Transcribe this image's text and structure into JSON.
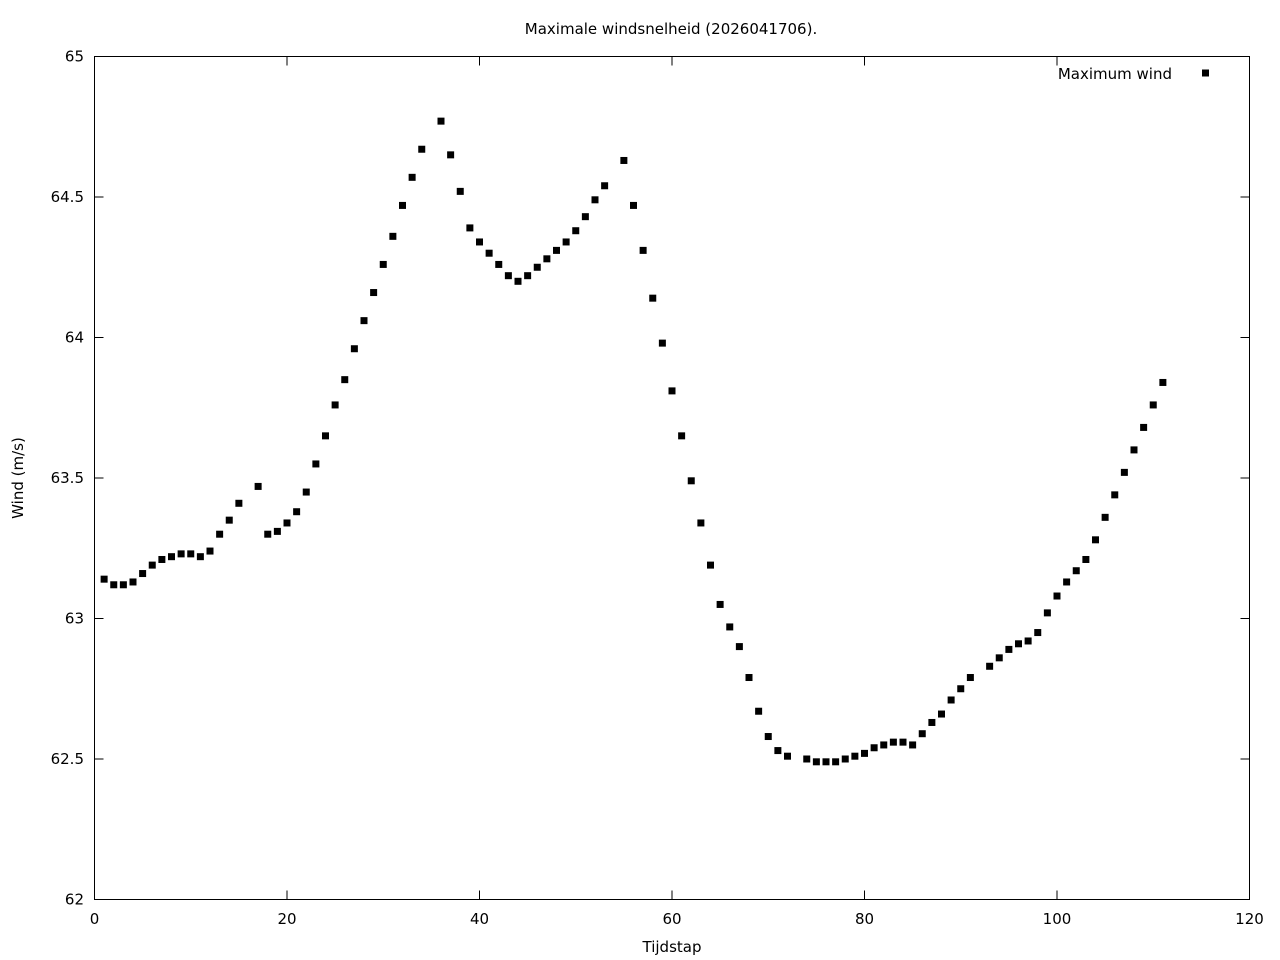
{
  "chart_data": {
    "type": "scatter",
    "title": "Maximale windsnelheid (2026041706).",
    "xlabel": "Tijdstap",
    "ylabel": "Wind (m/s)",
    "xlim": [
      0,
      120
    ],
    "ylim": [
      62,
      65
    ],
    "xticks": [
      "0",
      "20",
      "40",
      "60",
      "80",
      "100",
      "120"
    ],
    "yticks": [
      "62",
      "62.5",
      "63",
      "63.5",
      "64",
      "64.5",
      "65"
    ],
    "grid": false,
    "legend_position": "top-right",
    "marker_color": "#000000",
    "series": [
      {
        "name": "Maximum wind",
        "x": [
          1,
          2,
          3,
          4,
          5,
          6,
          7,
          8,
          9,
          10,
          11,
          12,
          13,
          14,
          15,
          17,
          18,
          19,
          20,
          21,
          22,
          23,
          24,
          25,
          26,
          27,
          28,
          29,
          30,
          31,
          32,
          33,
          34,
          36,
          37,
          38,
          39,
          40,
          41,
          42,
          43,
          44,
          45,
          46,
          47,
          48,
          49,
          50,
          51,
          52,
          53,
          55,
          56,
          57,
          58,
          59,
          60,
          61,
          62,
          63,
          64,
          65,
          66,
          67,
          68,
          69,
          70,
          71,
          72,
          74,
          75,
          76,
          77,
          78,
          79,
          80,
          81,
          82,
          83,
          84,
          85,
          86,
          87,
          88,
          89,
          90,
          91,
          93,
          94,
          95,
          96,
          97,
          98,
          99,
          100,
          101,
          102,
          103,
          104,
          105,
          106,
          107,
          108,
          109,
          110,
          111
        ],
        "y": [
          63.14,
          63.12,
          63.12,
          63.13,
          63.16,
          63.19,
          63.21,
          63.22,
          63.23,
          63.23,
          63.22,
          63.24,
          63.3,
          63.35,
          63.41,
          63.47,
          63.3,
          63.31,
          63.34,
          63.38,
          63.45,
          63.55,
          63.65,
          63.76,
          63.85,
          63.96,
          64.06,
          64.16,
          64.26,
          64.36,
          64.47,
          64.57,
          64.67,
          64.77,
          64.65,
          64.52,
          64.39,
          64.34,
          64.3,
          64.26,
          64.22,
          64.2,
          64.22,
          64.25,
          64.28,
          64.31,
          64.34,
          64.38,
          64.43,
          64.49,
          64.54,
          64.63,
          64.47,
          64.31,
          64.14,
          63.98,
          63.81,
          63.65,
          63.49,
          63.34,
          63.19,
          63.05,
          62.97,
          62.9,
          62.79,
          62.67,
          62.58,
          62.53,
          62.51,
          62.5,
          62.49,
          62.49,
          62.49,
          62.5,
          62.51,
          62.52,
          62.54,
          62.55,
          62.56,
          62.56,
          62.55,
          62.59,
          62.63,
          62.66,
          62.71,
          62.75,
          62.79,
          62.83,
          62.86,
          62.89,
          62.91,
          62.92,
          62.95,
          63.02,
          63.08,
          63.13,
          63.17,
          63.21,
          63.28,
          63.36,
          63.44,
          63.52,
          63.6,
          63.68,
          63.76,
          63.84
        ]
      }
    ]
  }
}
